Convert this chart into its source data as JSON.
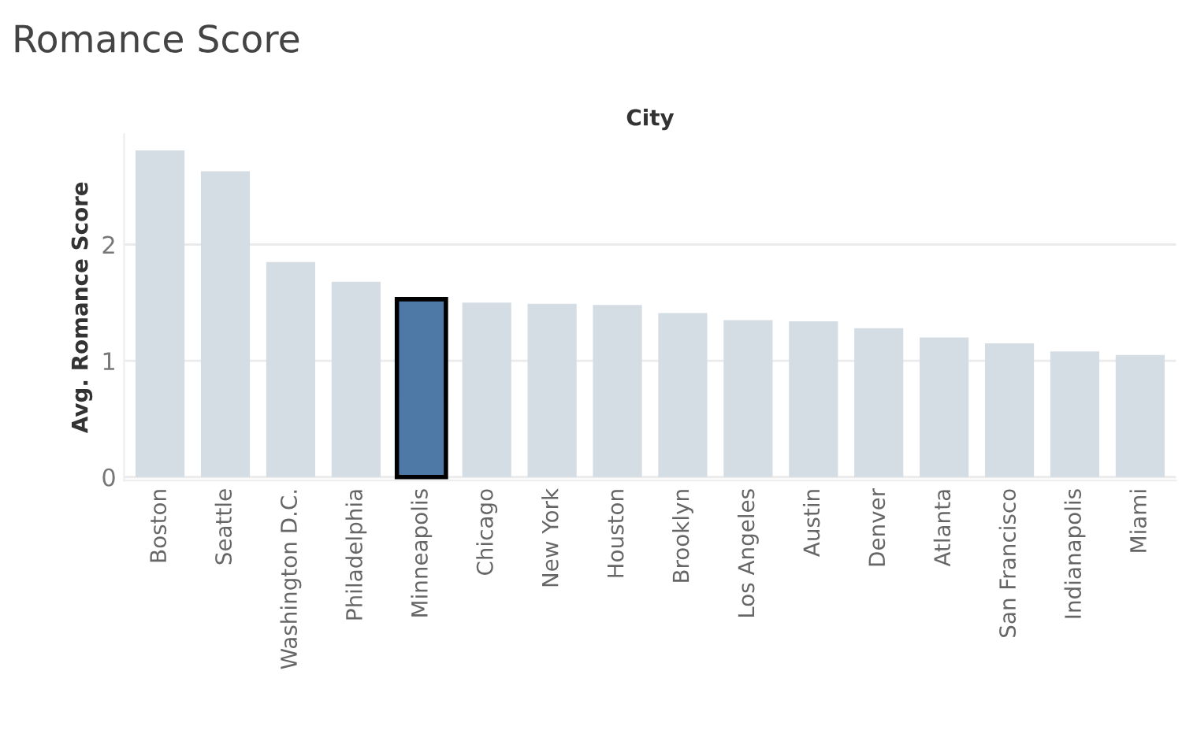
{
  "chart_data": {
    "type": "bar",
    "title": "Romance Score",
    "xlabel": "City",
    "ylabel": "Avg. Romance Score",
    "categories": [
      "Boston",
      "Seattle",
      "Washington D.C.",
      "Philadelphia",
      "Minneapolis",
      "Chicago",
      "New York",
      "Houston",
      "Brooklyn",
      "Los Angeles",
      "Austin",
      "Denver",
      "Atlanta",
      "San Francisco",
      "Indianapolis",
      "Miami"
    ],
    "values": [
      2.81,
      2.63,
      1.85,
      1.68,
      1.53,
      1.5,
      1.49,
      1.48,
      1.41,
      1.35,
      1.34,
      1.28,
      1.2,
      1.15,
      1.08,
      1.05
    ],
    "colors": [
      "#d5dde4",
      "#d5dde4",
      "#d5dde4",
      "#d5dde4",
      "#4e79a7",
      "#d5dde4",
      "#d5dde4",
      "#d5dde4",
      "#d5dde4",
      "#d5dde4",
      "#d5dde4",
      "#d5dde4",
      "#d5dde4",
      "#d5dde4",
      "#d5dde4",
      "#d5dde4"
    ],
    "ylim": [
      -0.03,
      2.95
    ],
    "yticks": [
      0,
      1,
      2
    ],
    "grid": "y"
  }
}
